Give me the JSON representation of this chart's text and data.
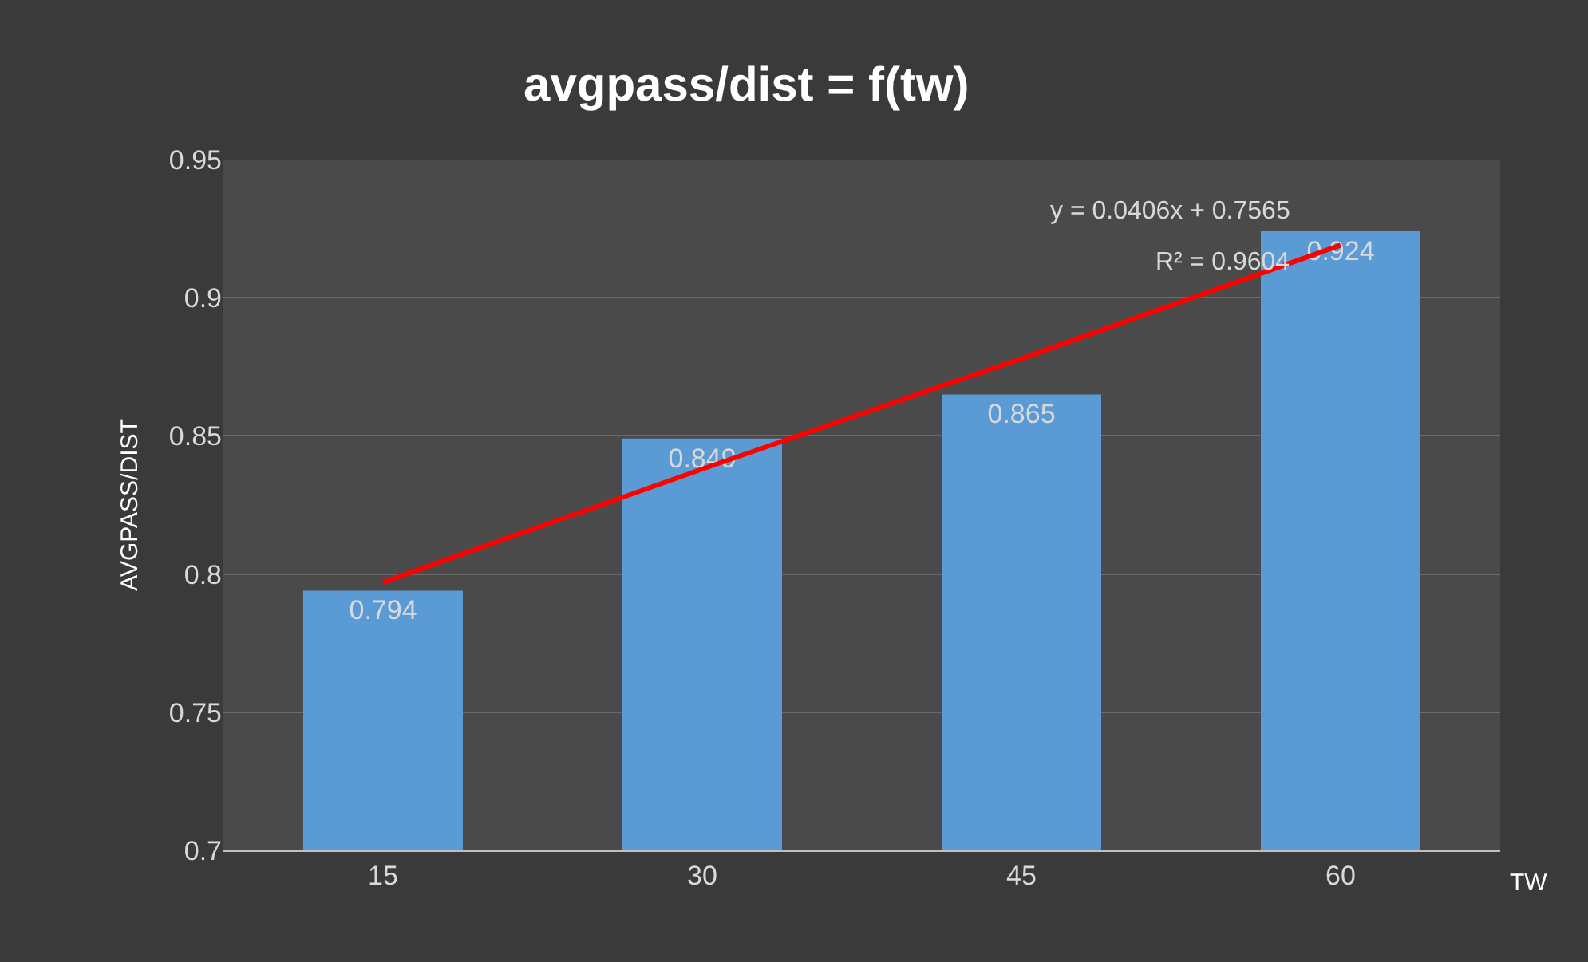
{
  "chart_data": {
    "type": "bar",
    "title": "avgpass/dist = f(tw)",
    "xlabel": "TW",
    "ylabel": "AVGPASS/DIST",
    "categories": [
      "15",
      "30",
      "45",
      "60"
    ],
    "series": [
      {
        "color": "#5b9bd5",
        "values": [
          0.794,
          0.849,
          0.865,
          0.924
        ],
        "value_labels": [
          "0.794",
          "0.849",
          "0.865",
          "0.924"
        ]
      },
      {
        "type": "line",
        "color": "#ff0000",
        "x": [
          "15",
          "30",
          "45",
          "60"
        ],
        "values": [
          0.797,
          0.838,
          0.878,
          0.919
        ]
      }
    ],
    "annotations": [
      "y = 0.0406x + 0.7565",
      "R² = 0.9604"
    ],
    "ylim": [
      0.7,
      0.95
    ],
    "yticks": [
      0.7,
      0.75,
      0.8,
      0.85,
      0.9,
      0.95
    ],
    "grid": "y"
  }
}
